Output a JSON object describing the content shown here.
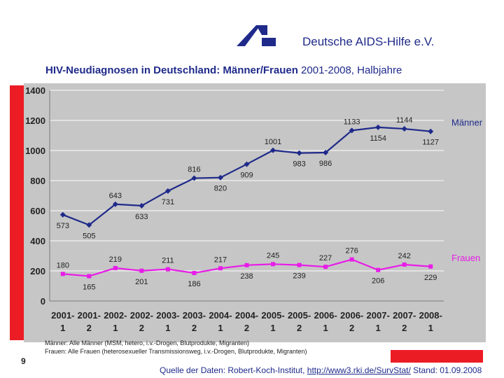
{
  "header": {
    "org_name": "Deutsche AIDS-Hilfe e.V.",
    "title_bold": "HIV-Neudiagnosen in Deutschland: Männer/Frauen",
    "title_rest": " 2001-2008, Halbjahre"
  },
  "footer": {
    "note_men": "Männer: Alle Männer (MSM, hetero, i.v.-Drogen, Blutprodukte, Migranten)",
    "note_women": "Frauen: Alle Frauen (heterosexueller Transmissionsweg, i.v.-Drogen, Blutprodukte, Migranten)",
    "page_number": "9",
    "source_prefix": "Quelle der Daten: Robert-Koch-Institut, ",
    "source_link": "http://www3.rki.de/SurvStat/",
    "source_suffix": "  Stand: 01.09.2008"
  },
  "colors": {
    "men": "#1f2a8a",
    "women": "#e81ce8",
    "plot_bg": "#c6c6c6",
    "brand_red": "#ec1c24"
  },
  "chart_data": {
    "type": "line",
    "title": "HIV-Neudiagnosen in Deutschland: Männer/Frauen 2001-2008, Halbjahre",
    "xlabel": "",
    "ylabel": "",
    "ylim": [
      0,
      1400
    ],
    "yticks": [
      0,
      200,
      400,
      600,
      800,
      1000,
      1200,
      1400
    ],
    "grid": true,
    "categories": [
      {
        "year": "2001-",
        "half": "1"
      },
      {
        "year": "2001-",
        "half": "2"
      },
      {
        "year": "2002-",
        "half": "1"
      },
      {
        "year": "2002-",
        "half": "2"
      },
      {
        "year": "2003-",
        "half": "1"
      },
      {
        "year": "2003-",
        "half": "2"
      },
      {
        "year": "2004-",
        "half": "1"
      },
      {
        "year": "2004-",
        "half": "2"
      },
      {
        "year": "2005-",
        "half": "1"
      },
      {
        "year": "2005-",
        "half": "2"
      },
      {
        "year": "2006-",
        "half": "1"
      },
      {
        "year": "2006-",
        "half": "2"
      },
      {
        "year": "2007-",
        "half": "1"
      },
      {
        "year": "2007-",
        "half": "2"
      },
      {
        "year": "2008-",
        "half": "1"
      }
    ],
    "series": [
      {
        "name": "Männer",
        "key": "men",
        "marker": "diamond",
        "values": [
          573,
          505,
          643,
          633,
          731,
          816,
          820,
          909,
          1001,
          983,
          986,
          1133,
          1154,
          1144,
          1127
        ],
        "label_pos": [
          "below",
          "below",
          "above",
          "below",
          "below",
          "above",
          "below",
          "below",
          "above",
          "below",
          "below",
          "above",
          "below",
          "above",
          "below"
        ]
      },
      {
        "name": "Frauen",
        "key": "women",
        "marker": "square",
        "values": [
          180,
          165,
          219,
          201,
          211,
          186,
          217,
          238,
          245,
          239,
          227,
          276,
          206,
          242,
          229
        ],
        "label_pos": [
          "above",
          "below",
          "above",
          "below",
          "above",
          "below",
          "above",
          "below",
          "above",
          "below",
          "above",
          "above",
          "below",
          "above",
          "below"
        ]
      }
    ]
  }
}
